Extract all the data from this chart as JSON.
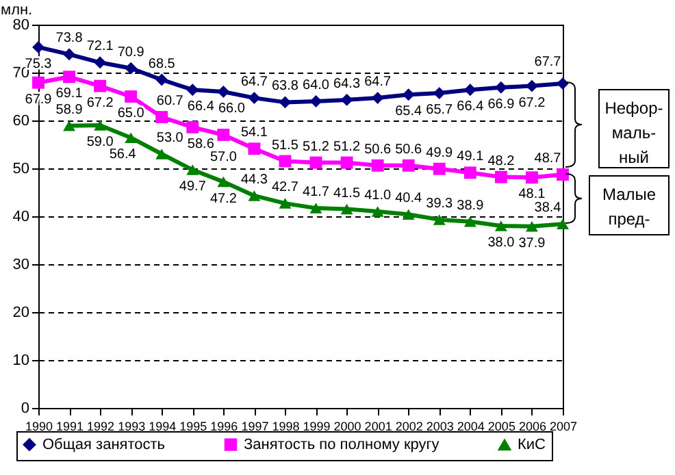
{
  "chart_data": {
    "type": "line",
    "ylabel": "млн.",
    "categories": [
      "1990",
      "1991",
      "1992",
      "1993",
      "1994",
      "1995",
      "1996",
      "1997",
      "1998",
      "1999",
      "2000",
      "2001",
      "2002",
      "2003",
      "2004",
      "2005",
      "2006",
      "2007"
    ],
    "series": [
      {
        "name": "Общая занятость",
        "color": "#000080",
        "marker": "diamond",
        "values": [
          75.3,
          73.8,
          72.1,
          70.9,
          68.5,
          66.4,
          66.0,
          64.7,
          63.8,
          64.0,
          64.3,
          64.7,
          65.4,
          65.7,
          66.4,
          66.9,
          67.2,
          67.7
        ],
        "value_labels": [
          "75.3",
          "73.8",
          "72.1",
          "70.9",
          "68.5",
          "66.4",
          "66.0",
          "64.7",
          "63.8",
          "64.0",
          "64.3",
          "64.7",
          "65.4",
          "65.7",
          "66.4",
          "66.9",
          "67.2",
          "67.7"
        ]
      },
      {
        "name": "Занятость по полному кругу",
        "color": "#ff00ff",
        "marker": "square",
        "values": [
          67.9,
          69.1,
          67.2,
          65.0,
          60.7,
          58.6,
          57.0,
          54.1,
          51.5,
          51.2,
          51.2,
          50.6,
          50.6,
          49.9,
          49.1,
          48.2,
          48.1,
          48.7
        ],
        "value_labels": [
          "67.9",
          "69.1",
          "67.2",
          "65.0",
          "60.7",
          "58.6",
          "57.0",
          "54.1",
          "51.5",
          "51.2",
          "51.2",
          "50.6",
          "50.6",
          "49.9",
          "49.1",
          "48.2",
          "48.1",
          "48.7"
        ]
      },
      {
        "name": "КиС",
        "color": "#008000",
        "marker": "triangle",
        "values": [
          null,
          58.9,
          59.0,
          56.4,
          53.0,
          49.7,
          47.2,
          44.3,
          42.7,
          41.7,
          41.5,
          41.0,
          40.4,
          39.3,
          38.9,
          38.0,
          37.9,
          38.4
        ],
        "value_labels": [
          null,
          "58.9",
          "59.0",
          "56.4",
          "53.0",
          "49.7",
          "47.2",
          "44.3",
          "42.7",
          "41.7",
          "41.5",
          "41.0",
          "40.4",
          "39.3",
          "38.9",
          "38.0",
          "37.9",
          "38.4"
        ]
      }
    ],
    "ylim": [
      0,
      80
    ],
    "yticks": [
      0,
      10,
      20,
      30,
      40,
      50,
      60,
      70,
      80
    ],
    "grid": "y",
    "legend": "bottom",
    "line_style": "solid",
    "annotations": [
      "Нефор-маль-ный",
      "Малые пред-"
    ]
  }
}
